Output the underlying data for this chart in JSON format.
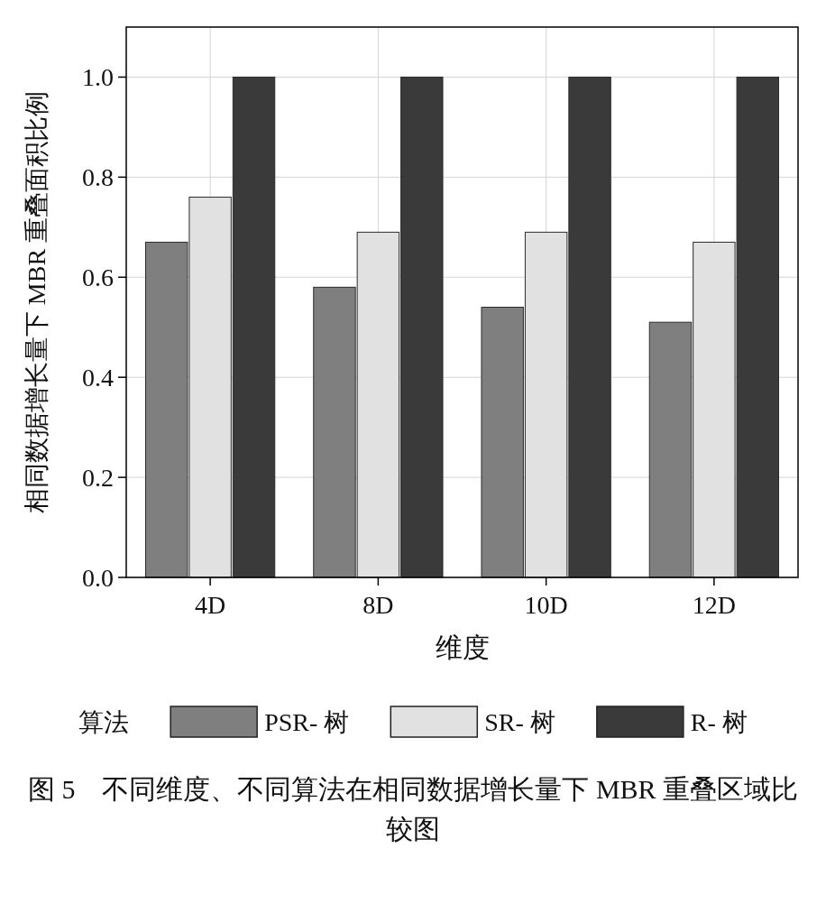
{
  "chart_data": {
    "type": "bar",
    "categories": [
      "4D",
      "8D",
      "10D",
      "12D"
    ],
    "series": [
      {
        "name": "PSR- 树",
        "color": "#7f7f7f",
        "values": [
          0.67,
          0.58,
          0.54,
          0.51
        ]
      },
      {
        "name": "SR- 树",
        "color": "#e1e1e1",
        "values": [
          0.76,
          0.69,
          0.69,
          0.67
        ]
      },
      {
        "name": "R- 树",
        "color": "#3a3a3a",
        "values": [
          1.0,
          1.0,
          1.0,
          1.0
        ]
      }
    ],
    "xlabel": "维度",
    "ylabel": "相同数据增长量下 MBR 重叠面积比例",
    "legend_title": "算法",
    "ylim": [
      0,
      1.1
    ],
    "yticks": [
      {
        "value": 0,
        "label": "0.0"
      },
      {
        "value": 0.2,
        "label": "0.2"
      },
      {
        "value": 0.4,
        "label": "0.4"
      },
      {
        "value": 0.6,
        "label": "0.6"
      },
      {
        "value": 0.8,
        "label": "0.8"
      },
      {
        "value": 1,
        "label": "1.0"
      }
    ],
    "grid": true,
    "legend": "bottom",
    "annotations": [
      "图 5　不同维度、不同算法在相同数据增长量下 MBR 重叠区域比较图"
    ]
  }
}
